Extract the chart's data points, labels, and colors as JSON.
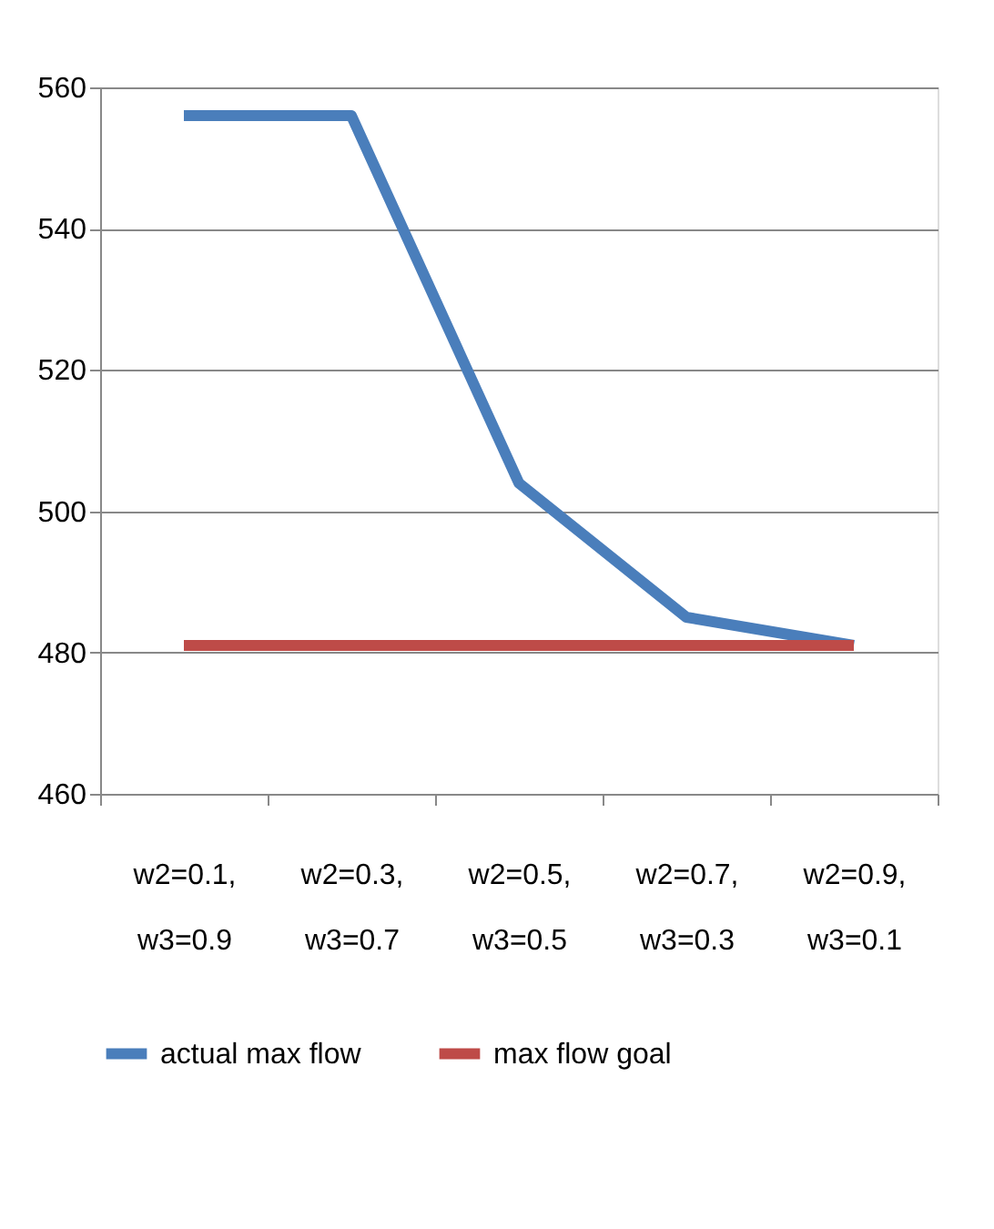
{
  "chart_data": {
    "type": "line",
    "categories": [
      "w2=0.1,\nw3=0.9",
      "w2=0.3,\nw3=0.7",
      "w2=0.5,\nw3=0.5",
      "w2=0.7,\nw3=0.3",
      "w2=0.9,\nw3=0.1"
    ],
    "series": [
      {
        "name": "actual max flow",
        "color": "#4a7ebb",
        "values": [
          556,
          556,
          504,
          485,
          481
        ]
      },
      {
        "name": "max flow goal",
        "color": "#be4b48",
        "values": [
          481,
          481,
          481,
          481,
          481
        ]
      }
    ],
    "ylim": [
      460,
      560
    ],
    "yticks": [
      460,
      480,
      500,
      520,
      540,
      560
    ],
    "grid": "y",
    "legend": "bottom",
    "marker": "none",
    "line_style": "solid"
  }
}
